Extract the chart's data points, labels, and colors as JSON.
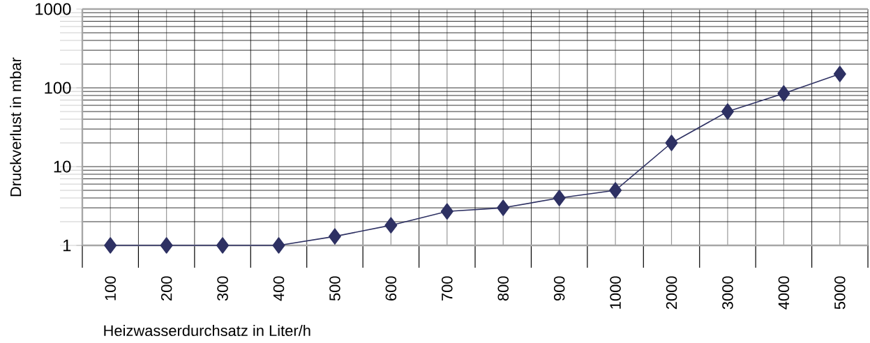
{
  "chart_data": {
    "type": "line",
    "xlabel": "Heizwasserdurchsatz in Liter/h",
    "ylabel": "Druckverlust in mbar",
    "categories": [
      "100",
      "200",
      "300",
      "400",
      "500",
      "600",
      "700",
      "800",
      "900",
      "1000",
      "2000",
      "3000",
      "4000",
      "5000"
    ],
    "series": [
      {
        "color": "#2e3163",
        "values": [
          1,
          1,
          1,
          1,
          1.3,
          1.8,
          2.7,
          3,
          4,
          5,
          20,
          50,
          85,
          150
        ]
      }
    ],
    "log": "y",
    "ylim": [
      1,
      1000
    ],
    "yticks": [
      1,
      10,
      100,
      1000
    ],
    "grid": true,
    "marker": "diamond",
    "line_style": "solid"
  }
}
